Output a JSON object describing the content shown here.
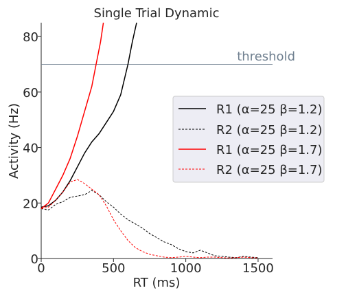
{
  "chart_data": {
    "type": "line",
    "title": "Single Trial Dynamic",
    "xlabel": "RT (ms)",
    "ylabel": "Activity (Hz)",
    "xlim": [
      0,
      1600
    ],
    "ylim": [
      0,
      85
    ],
    "xticks": [
      0,
      500,
      1000,
      1500
    ],
    "yticks": [
      0,
      20,
      40,
      60,
      80
    ],
    "grid": false,
    "legend_position": "center-right",
    "threshold": {
      "y": 70,
      "label": "threshold",
      "color": "#708090"
    },
    "series": [
      {
        "name": "R1 (α=25 β=1.2)",
        "color": "#000000",
        "dash": "solid",
        "x": [
          0,
          50,
          100,
          150,
          200,
          250,
          300,
          350,
          400,
          450,
          500,
          550,
          600,
          630,
          660
        ],
        "y": [
          18.5,
          19,
          21,
          24,
          28,
          33,
          38,
          42,
          45,
          49,
          53,
          59,
          70,
          78,
          85
        ]
      },
      {
        "name": "R2 (α=25 β=1.2)",
        "color": "#000000",
        "dash": "dashed",
        "x": [
          0,
          50,
          100,
          150,
          200,
          250,
          300,
          350,
          400,
          450,
          500,
          550,
          600,
          650,
          700,
          750,
          800,
          850,
          900,
          950,
          1000,
          1050,
          1100,
          1150,
          1200,
          1250,
          1300,
          1350,
          1400,
          1450,
          1500
        ],
        "y": [
          18,
          17.5,
          19.5,
          20.5,
          22,
          22.5,
          23,
          24.5,
          23,
          20.5,
          18.5,
          16,
          14,
          12.5,
          11,
          9,
          7.5,
          6,
          5,
          3.5,
          2.5,
          2,
          3,
          2,
          1,
          0.8,
          0.5,
          0.3,
          0.8,
          0.5,
          0.3
        ]
      },
      {
        "name": "R1 (α=25 β=1.7)",
        "color": "#ff0000",
        "dash": "solid",
        "x": [
          0,
          50,
          100,
          150,
          200,
          250,
          300,
          350,
          380,
          410,
          430
        ],
        "y": [
          18,
          20,
          25,
          30,
          36,
          44,
          53,
          62,
          70,
          78,
          85
        ]
      },
      {
        "name": "R2 (α=25 β=1.7)",
        "color": "#ff0000",
        "dash": "dashed",
        "x": [
          0,
          50,
          100,
          150,
          200,
          250,
          300,
          350,
          400,
          450,
          500,
          550,
          600,
          650,
          700,
          750,
          800,
          850,
          900,
          950,
          1000,
          1050,
          1100,
          1150,
          1200,
          1250,
          1300,
          1350,
          1400,
          1450,
          1500
        ],
        "y": [
          18,
          18.5,
          21,
          24,
          27.5,
          28.5,
          27,
          25,
          23,
          19,
          14,
          10,
          6.5,
          4,
          2.5,
          1.5,
          1,
          0.5,
          0.3,
          0.5,
          0.8,
          0.5,
          0.3,
          0.5,
          0.5,
          0.3,
          0.2,
          0.3,
          0.5,
          0.3,
          0.2
        ]
      }
    ]
  }
}
